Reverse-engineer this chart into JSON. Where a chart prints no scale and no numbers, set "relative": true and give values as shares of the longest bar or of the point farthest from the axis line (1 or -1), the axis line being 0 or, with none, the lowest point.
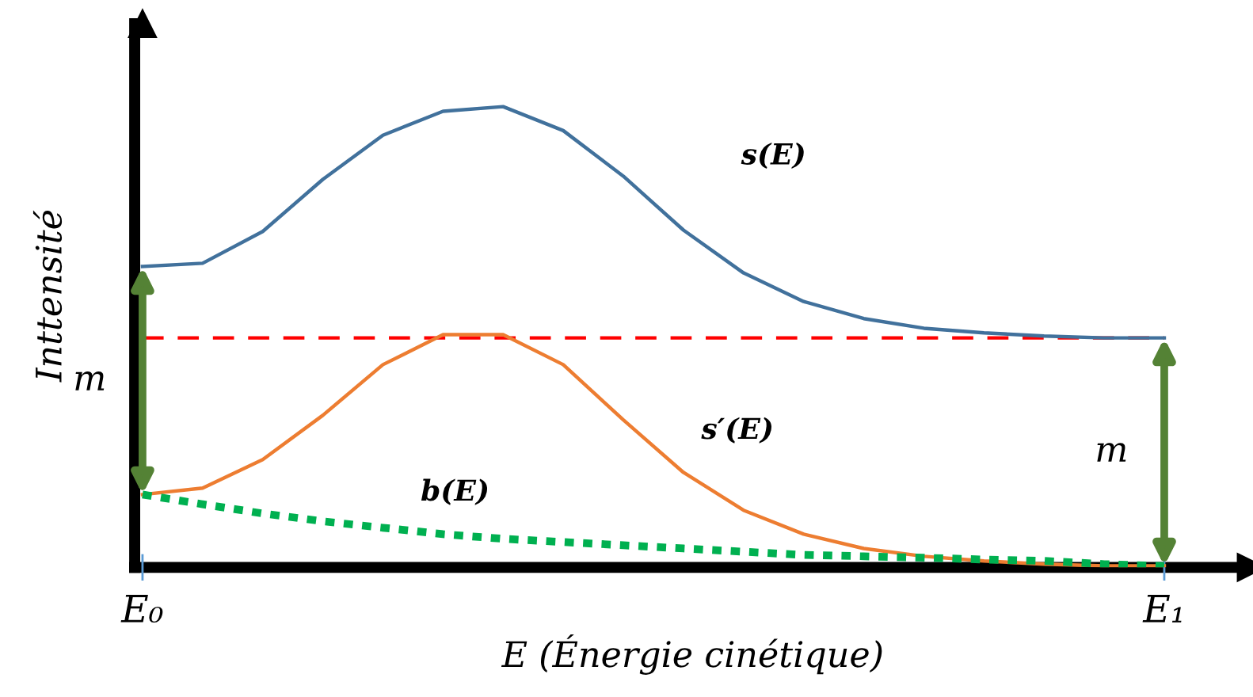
{
  "chart_data": {
    "type": "line",
    "relative": true,
    "xlabel": "E (Énergie cinétique)",
    "ylabel": "Inttensité",
    "categories": [
      "E₀",
      null,
      null,
      null,
      null,
      null,
      null,
      null,
      null,
      null,
      null,
      null,
      null,
      null,
      null,
      null,
      null,
      "E₁"
    ],
    "tick_labels": "x",
    "grid": false,
    "legend": false,
    "marker": "none",
    "series": [
      {
        "name": "s(E)",
        "color": "#41719c",
        "line_style": "solid",
        "values": [
          0.653,
          0.66,
          0.729,
          0.842,
          0.938,
          0.99,
          1,
          0.948,
          0.849,
          0.732,
          0.639,
          0.577,
          0.54,
          0.519,
          0.509,
          0.502,
          0.498,
          0.498
        ]
      },
      {
        "name": "s′(E)",
        "color": "#ed7d31",
        "line_style": "solid",
        "values": [
          0.158,
          0.172,
          0.234,
          0.33,
          0.44,
          0.505,
          0.505,
          0.44,
          0.32,
          0.206,
          0.124,
          0.072,
          0.041,
          0.024,
          0.014,
          0.007,
          0.003,
          0.003
        ]
      },
      {
        "name": "b(E)",
        "color": "#00b050",
        "line_style": "dotted",
        "values": [
          0.158,
          0.137,
          0.117,
          0.1,
          0.086,
          0.072,
          0.062,
          0.055,
          0.048,
          0.041,
          0.034,
          0.027,
          0.024,
          0.021,
          0.017,
          0.014,
          0.007,
          0.003
        ]
      }
    ],
    "ref_lines": [
      {
        "axis": "y",
        "value": 0.498,
        "label": null,
        "color": "#ff0000",
        "line_style": "dashed"
      }
    ],
    "annotations": [
      "m",
      "m"
    ]
  }
}
